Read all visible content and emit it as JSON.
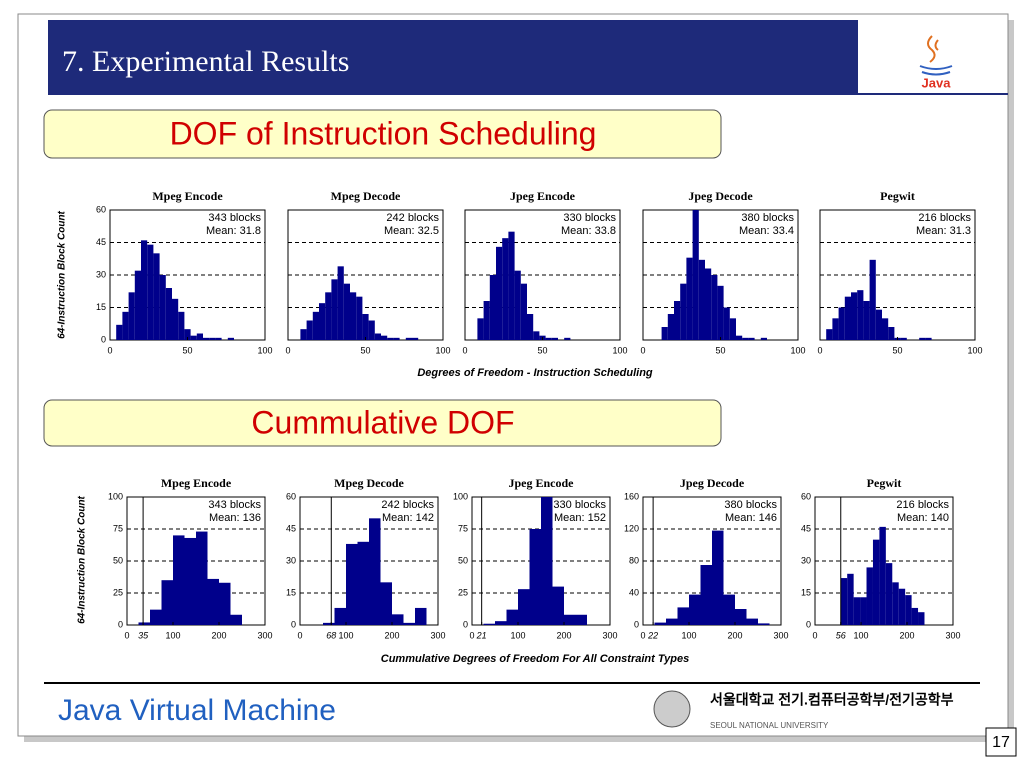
{
  "slide": {
    "title": "7. Experimental Results",
    "logo": "Java",
    "sections": [
      "DOF of Instruction Scheduling",
      "Cummulative DOF"
    ],
    "row_ylabels": [
      "64-Instruction Block Count",
      "64-Instruction Block Count"
    ],
    "row_xlabels": [
      "Degrees of Freedom - Instruction Scheduling",
      "Cummulative Degrees of Freedom For All Constraint Types"
    ],
    "footer": "Java Virtual Machine",
    "university_kr": "서울대학교 전기.컴퓨터공학부/전기공학부",
    "university": "SEOUL NATIONAL UNIVERSITY",
    "page": "17"
  },
  "chart_data": [
    {
      "type": "histogram",
      "title": "Mpeg Encode",
      "annotations": [
        "343 blocks",
        "Mean: 31.8"
      ],
      "color": "#00008b",
      "bins": [
        0,
        4,
        8,
        12,
        16,
        20,
        24,
        28,
        32,
        36,
        40,
        44,
        48,
        52,
        56,
        60,
        64,
        68,
        72,
        76,
        80,
        84,
        88,
        92,
        96,
        100
      ],
      "values": [
        0,
        7,
        13,
        22,
        32,
        46,
        44,
        40,
        30,
        24,
        19,
        13,
        5,
        2,
        3,
        1,
        1,
        1,
        0,
        1,
        0,
        0,
        0,
        0,
        0
      ],
      "xlim": [
        0,
        100
      ],
      "ylim": [
        0,
        60
      ],
      "xticks": [
        0,
        50,
        100
      ],
      "yticks": [
        0,
        15,
        30,
        45,
        60
      ],
      "ytick_labels": true,
      "grid": true
    },
    {
      "type": "histogram",
      "title": "Mpeg Decode",
      "annotations": [
        "242 blocks",
        "Mean: 32.5"
      ],
      "color": "#00008b",
      "bins": [
        0,
        4,
        8,
        12,
        16,
        20,
        24,
        28,
        32,
        36,
        40,
        44,
        48,
        52,
        56,
        60,
        64,
        68,
        72,
        76,
        80,
        84,
        88,
        92,
        96,
        100
      ],
      "values": [
        0,
        0,
        5,
        9,
        13,
        17,
        22,
        28,
        34,
        26,
        22,
        20,
        12,
        9,
        3,
        2,
        1,
        1,
        0,
        1,
        1,
        0,
        0,
        0,
        0
      ],
      "xlim": [
        0,
        100
      ],
      "ylim": [
        0,
        60
      ],
      "xticks": [
        0,
        50,
        100
      ],
      "yticks": [
        0,
        15,
        30,
        45,
        60
      ],
      "ytick_labels": false,
      "grid": true
    },
    {
      "type": "histogram",
      "title": "Jpeg Encode",
      "annotations": [
        "330 blocks",
        "Mean: 33.8"
      ],
      "color": "#00008b",
      "bins": [
        0,
        4,
        8,
        12,
        16,
        20,
        24,
        28,
        32,
        36,
        40,
        44,
        48,
        52,
        56,
        60,
        64,
        68,
        72,
        76,
        80,
        84,
        88,
        92,
        96,
        100
      ],
      "values": [
        0,
        0,
        10,
        18,
        30,
        43,
        47,
        50,
        32,
        26,
        12,
        4,
        2,
        1,
        1,
        0,
        1,
        0,
        0,
        0,
        0,
        0,
        0,
        0,
        0
      ],
      "xlim": [
        0,
        100
      ],
      "ylim": [
        0,
        60
      ],
      "xticks": [
        0,
        50,
        100
      ],
      "yticks": [
        0,
        15,
        30,
        45,
        60
      ],
      "ytick_labels": false,
      "grid": true
    },
    {
      "type": "histogram",
      "title": "Jpeg Decode",
      "annotations": [
        "380 blocks",
        "Mean: 33.4"
      ],
      "color": "#00008b",
      "bins": [
        0,
        4,
        8,
        12,
        16,
        20,
        24,
        28,
        32,
        36,
        40,
        44,
        48,
        52,
        56,
        60,
        64,
        68,
        72,
        76,
        80,
        84,
        88,
        92,
        96,
        100
      ],
      "values": [
        0,
        0,
        0,
        6,
        12,
        18,
        26,
        38,
        60,
        37,
        33,
        30,
        25,
        15,
        10,
        2,
        1,
        1,
        0,
        1,
        0,
        0,
        0,
        0,
        0
      ],
      "xlim": [
        0,
        100
      ],
      "ylim": [
        0,
        60
      ],
      "xticks": [
        0,
        50,
        100
      ],
      "yticks": [
        0,
        15,
        30,
        45,
        60
      ],
      "ytick_labels": false,
      "grid": true
    },
    {
      "type": "histogram",
      "title": "Pegwit",
      "annotations": [
        "216 blocks",
        "Mean: 31.3"
      ],
      "color": "#00008b",
      "bins": [
        0,
        4,
        8,
        12,
        16,
        20,
        24,
        28,
        32,
        36,
        40,
        44,
        48,
        52,
        56,
        60,
        64,
        68,
        72,
        76,
        80,
        84,
        88,
        92,
        96,
        100
      ],
      "values": [
        0,
        5,
        10,
        15,
        20,
        22,
        23,
        18,
        37,
        14,
        10,
        6,
        1,
        1,
        0,
        0,
        1,
        1,
        0,
        0,
        0,
        0,
        0,
        0,
        0
      ],
      "xlim": [
        0,
        100
      ],
      "ylim": [
        0,
        60
      ],
      "xticks": [
        0,
        50,
        100
      ],
      "yticks": [
        0,
        15,
        30,
        45,
        60
      ],
      "ytick_labels": false,
      "grid": true
    },
    {
      "type": "histogram",
      "title": "Mpeg Encode",
      "annotations": [
        "343 blocks",
        "Mean: 136"
      ],
      "color": "#00008b",
      "bins": [
        25,
        50,
        75,
        100,
        125,
        150,
        175,
        200,
        225,
        250
      ],
      "values": [
        2,
        12,
        35,
        70,
        68,
        73,
        36,
        33,
        8
      ],
      "xlim": [
        0,
        300
      ],
      "ylim": [
        0,
        100
      ],
      "xticks": [
        0,
        35,
        100,
        200,
        300
      ],
      "min_line": 35,
      "yticks": [
        0,
        25,
        50,
        75,
        100
      ],
      "ytick_labels": true,
      "grid": true
    },
    {
      "type": "histogram",
      "title": "Mpeg Decode",
      "annotations": [
        "242 blocks",
        "Mean: 142"
      ],
      "color": "#00008b",
      "bins": [
        50,
        75,
        100,
        125,
        150,
        175,
        200,
        225,
        250,
        275
      ],
      "values": [
        1,
        8,
        38,
        39,
        50,
        20,
        5,
        1,
        8
      ],
      "xlim": [
        0,
        300
      ],
      "ylim": [
        0,
        60
      ],
      "xticks": [
        0,
        68,
        100,
        200,
        300
      ],
      "min_line": 68,
      "yticks": [
        0,
        15,
        30,
        45,
        60
      ],
      "ytick_labels": true,
      "grid": true
    },
    {
      "type": "histogram",
      "title": "Jpeg Encode",
      "annotations": [
        "330 blocks",
        "Mean: 152"
      ],
      "color": "#00008b",
      "bins": [
        25,
        50,
        75,
        100,
        125,
        150,
        175,
        200,
        225,
        250
      ],
      "values": [
        1,
        3,
        12,
        28,
        75,
        100,
        30,
        8,
        8
      ],
      "xlim": [
        0,
        300
      ],
      "ylim": [
        0,
        100
      ],
      "xticks": [
        0,
        21,
        100,
        200,
        300
      ],
      "min_line": 21,
      "yticks": [
        0,
        25,
        50,
        75,
        100
      ],
      "ytick_labels": true,
      "grid": true
    },
    {
      "type": "histogram",
      "title": "Jpeg Decode",
      "annotations": [
        "380 blocks",
        "Mean: 146"
      ],
      "color": "#00008b",
      "bins": [
        25,
        50,
        75,
        100,
        125,
        150,
        175,
        200,
        225,
        250,
        275
      ],
      "values": [
        3,
        8,
        22,
        38,
        75,
        118,
        38,
        20,
        8,
        2
      ],
      "xlim": [
        0,
        300
      ],
      "ylim": [
        0,
        160
      ],
      "xticks": [
        0,
        22,
        100,
        200,
        300
      ],
      "min_line": 22,
      "yticks": [
        0,
        40,
        80,
        120,
        160
      ],
      "ytick_labels": true,
      "grid": true
    },
    {
      "type": "histogram",
      "title": "Pegwit",
      "annotations": [
        "216 blocks",
        "Mean: 140"
      ],
      "color": "#00008b",
      "bins": [
        56,
        70,
        84,
        98,
        112,
        126,
        140,
        154,
        168,
        182,
        196,
        210,
        224,
        238
      ],
      "values": [
        22,
        24,
        13,
        13,
        27,
        40,
        46,
        29,
        20,
        17,
        14,
        8,
        6
      ],
      "xlim": [
        0,
        300
      ],
      "ylim": [
        0,
        60
      ],
      "xticks": [
        0,
        56,
        100,
        200,
        300
      ],
      "min_line": 56,
      "yticks": [
        0,
        15,
        30,
        45,
        60
      ],
      "ytick_labels": true,
      "grid": true
    }
  ]
}
